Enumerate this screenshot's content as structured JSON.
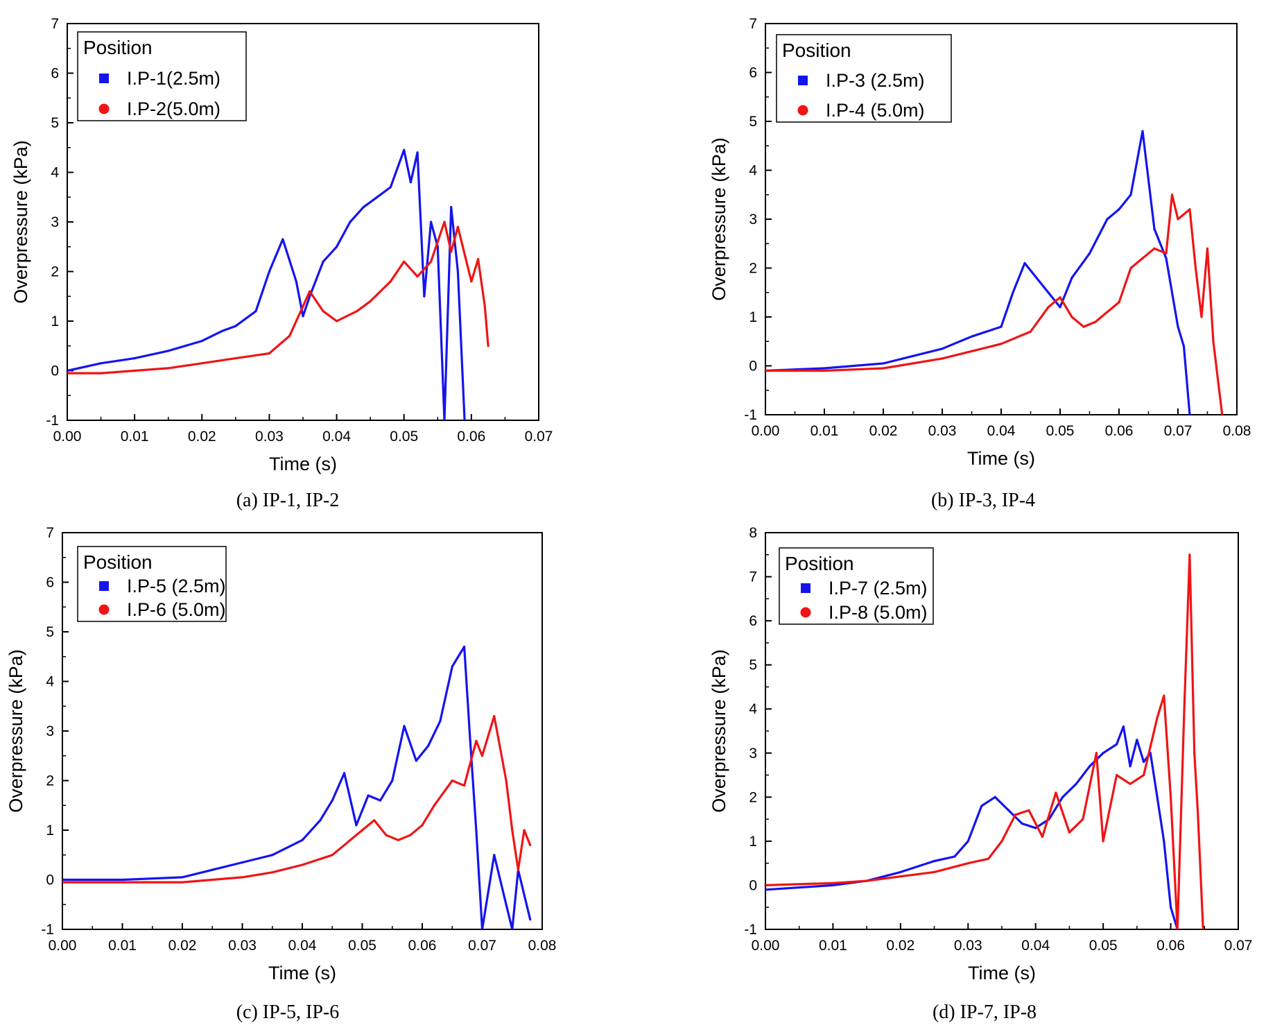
{
  "colors": {
    "series_a": "#1414f0",
    "series_b": "#f01414",
    "axis": "#000000"
  },
  "chart_data": [
    {
      "type": "line",
      "caption": "(a) IP-1, IP-2",
      "xlabel": "Time (s)",
      "ylabel": "Overpressure (kPa)",
      "xlim": [
        0,
        0.07
      ],
      "ylim": [
        -1,
        7
      ],
      "xticks": [
        "0.00",
        "0.01",
        "0.02",
        "0.03",
        "0.04",
        "0.05",
        "0.06",
        "0.07"
      ],
      "yticks": [
        "-1",
        "0",
        "1",
        "2",
        "3",
        "4",
        "5",
        "6",
        "7"
      ],
      "legend": {
        "title": "Position",
        "placement": "top-left"
      },
      "grid": false,
      "series": [
        {
          "name": "I.P-1(2.5m)",
          "marker": "square",
          "x": [
            0,
            0.005,
            0.01,
            0.015,
            0.02,
            0.023,
            0.025,
            0.028,
            0.03,
            0.032,
            0.034,
            0.035,
            0.036,
            0.038,
            0.04,
            0.042,
            0.044,
            0.046,
            0.048,
            0.05,
            0.051,
            0.052,
            0.053,
            0.054,
            0.055,
            0.056,
            0.057,
            0.058,
            0.059
          ],
          "y": [
            0.0,
            0.15,
            0.25,
            0.4,
            0.6,
            0.8,
            0.9,
            1.2,
            2.0,
            2.65,
            1.8,
            1.1,
            1.5,
            2.2,
            2.5,
            3.0,
            3.3,
            3.5,
            3.7,
            4.45,
            3.8,
            4.4,
            1.5,
            3.0,
            2.5,
            -1.0,
            3.3,
            2.0,
            -1.0
          ]
        },
        {
          "name": "I.P-2(5.0m)",
          "marker": "circle",
          "x": [
            0,
            0.005,
            0.01,
            0.015,
            0.02,
            0.025,
            0.03,
            0.033,
            0.035,
            0.036,
            0.038,
            0.04,
            0.043,
            0.045,
            0.048,
            0.05,
            0.052,
            0.054,
            0.056,
            0.057,
            0.058,
            0.06,
            0.061,
            0.062,
            0.0625
          ],
          "y": [
            -0.05,
            -0.05,
            0.0,
            0.05,
            0.15,
            0.25,
            0.35,
            0.7,
            1.3,
            1.6,
            1.2,
            1.0,
            1.2,
            1.4,
            1.8,
            2.2,
            1.9,
            2.2,
            3.0,
            2.4,
            2.9,
            1.8,
            2.25,
            1.3,
            0.5
          ]
        }
      ]
    },
    {
      "type": "line",
      "caption": "(b) IP-3, IP-4",
      "xlabel": "Time (s)",
      "ylabel": "Overpressure (kPa)",
      "xlim": [
        0,
        0.08
      ],
      "ylim": [
        -1,
        7
      ],
      "xticks": [
        "0.00",
        "0.01",
        "0.02",
        "0.03",
        "0.04",
        "0.05",
        "0.06",
        "0.07",
        "0.08"
      ],
      "yticks": [
        "-1",
        "0",
        "1",
        "2",
        "3",
        "4",
        "5",
        "6",
        "7"
      ],
      "legend": {
        "title": "Position",
        "placement": "top-left"
      },
      "grid": false,
      "series": [
        {
          "name": "I.P-3 (2.5m)",
          "marker": "square",
          "x": [
            0,
            0.01,
            0.02,
            0.025,
            0.03,
            0.035,
            0.04,
            0.042,
            0.044,
            0.046,
            0.048,
            0.05,
            0.052,
            0.055,
            0.058,
            0.06,
            0.062,
            0.064,
            0.066,
            0.068,
            0.07,
            0.071,
            0.072
          ],
          "y": [
            -0.1,
            -0.05,
            0.05,
            0.2,
            0.35,
            0.6,
            0.8,
            1.5,
            2.1,
            1.8,
            1.5,
            1.2,
            1.8,
            2.3,
            3.0,
            3.2,
            3.5,
            4.8,
            2.8,
            2.2,
            0.8,
            0.4,
            -1.0
          ]
        },
        {
          "name": "I.P-4 (5.0m)",
          "marker": "circle",
          "x": [
            0,
            0.01,
            0.02,
            0.025,
            0.03,
            0.035,
            0.04,
            0.045,
            0.048,
            0.05,
            0.052,
            0.054,
            0.056,
            0.058,
            0.06,
            0.062,
            0.064,
            0.066,
            0.068,
            0.069,
            0.07,
            0.072,
            0.073,
            0.074,
            0.075,
            0.076,
            0.077,
            0.0775
          ],
          "y": [
            -0.1,
            -0.1,
            -0.05,
            0.05,
            0.15,
            0.3,
            0.45,
            0.7,
            1.2,
            1.4,
            1.0,
            0.8,
            0.9,
            1.1,
            1.3,
            2.0,
            2.2,
            2.4,
            2.3,
            3.5,
            3.0,
            3.2,
            2.0,
            1.0,
            2.4,
            0.5,
            -0.5,
            -1.0
          ]
        }
      ]
    },
    {
      "type": "line",
      "caption": "(c) IP-5, IP-6",
      "xlabel": "Time (s)",
      "ylabel": "Overpressure (kPa)",
      "xlim": [
        0,
        0.08
      ],
      "ylim": [
        -1,
        7
      ],
      "xticks": [
        "0.00",
        "0.01",
        "0.02",
        "0.03",
        "0.04",
        "0.05",
        "0.06",
        "0.07",
        "0.08"
      ],
      "yticks": [
        "-1",
        "0",
        "1",
        "2",
        "3",
        "4",
        "5",
        "6",
        "7"
      ],
      "legend": {
        "title": "Position",
        "placement": "top-left"
      },
      "grid": false,
      "series": [
        {
          "name": "I.P-5 (2.5m)",
          "marker": "square",
          "x": [
            0,
            0.01,
            0.02,
            0.025,
            0.03,
            0.035,
            0.04,
            0.043,
            0.045,
            0.047,
            0.049,
            0.051,
            0.053,
            0.055,
            0.057,
            0.059,
            0.061,
            0.063,
            0.065,
            0.067,
            0.068,
            0.069,
            0.07,
            0.072,
            0.074,
            0.075,
            0.076,
            0.078
          ],
          "y": [
            0.0,
            0.0,
            0.05,
            0.2,
            0.35,
            0.5,
            0.8,
            1.2,
            1.6,
            2.15,
            1.1,
            1.7,
            1.6,
            2.0,
            3.1,
            2.4,
            2.7,
            3.2,
            4.3,
            4.7,
            2.8,
            1.0,
            -1.0,
            0.5,
            -0.5,
            -1.0,
            0.2,
            -0.8
          ]
        },
        {
          "name": "I.P-6 (5.0m)",
          "marker": "circle",
          "x": [
            0,
            0.01,
            0.02,
            0.025,
            0.03,
            0.035,
            0.04,
            0.045,
            0.048,
            0.05,
            0.052,
            0.054,
            0.056,
            0.058,
            0.06,
            0.062,
            0.065,
            0.067,
            0.069,
            0.07,
            0.072,
            0.074,
            0.075,
            0.076,
            0.077,
            0.078
          ],
          "y": [
            -0.05,
            -0.05,
            -0.05,
            0.0,
            0.05,
            0.15,
            0.3,
            0.5,
            0.8,
            1.0,
            1.2,
            0.9,
            0.8,
            0.9,
            1.1,
            1.5,
            2.0,
            1.9,
            2.8,
            2.5,
            3.3,
            2.0,
            1.0,
            0.2,
            1.0,
            0.7
          ]
        }
      ]
    },
    {
      "type": "line",
      "caption": "(d) IP-7, IP-8",
      "xlabel": "Time (s)",
      "ylabel": "Overpressure (kPa)",
      "xlim": [
        0,
        0.07
      ],
      "ylim": [
        -1,
        8
      ],
      "xticks": [
        "0.00",
        "0.01",
        "0.02",
        "0.03",
        "0.04",
        "0.05",
        "0.06",
        "0.07"
      ],
      "yticks": [
        "-1",
        "0",
        "1",
        "2",
        "3",
        "4",
        "5",
        "6",
        "7",
        "8"
      ],
      "legend": {
        "title": "Position",
        "placement": "top-left"
      },
      "grid": false,
      "series": [
        {
          "name": "I.P-7 (2.5m)",
          "marker": "square",
          "x": [
            0,
            0.01,
            0.015,
            0.02,
            0.025,
            0.028,
            0.03,
            0.032,
            0.034,
            0.036,
            0.038,
            0.04,
            0.042,
            0.044,
            0.046,
            0.048,
            0.05,
            0.052,
            0.053,
            0.054,
            0.055,
            0.056,
            0.057,
            0.058,
            0.059,
            0.06,
            0.061
          ],
          "y": [
            -0.1,
            0.0,
            0.1,
            0.3,
            0.55,
            0.65,
            1.0,
            1.8,
            2.0,
            1.7,
            1.4,
            1.3,
            1.5,
            2.0,
            2.3,
            2.7,
            3.0,
            3.2,
            3.6,
            2.7,
            3.3,
            2.8,
            3.0,
            2.0,
            1.0,
            -0.5,
            -1.0
          ]
        },
        {
          "name": "I.P-8 (5.0m)",
          "marker": "circle",
          "x": [
            0,
            0.01,
            0.015,
            0.02,
            0.025,
            0.03,
            0.033,
            0.035,
            0.037,
            0.039,
            0.041,
            0.043,
            0.045,
            0.047,
            0.049,
            0.05,
            0.052,
            0.054,
            0.056,
            0.058,
            0.059,
            0.06,
            0.061,
            0.062,
            0.0628,
            0.0635,
            0.064,
            0.0648
          ],
          "y": [
            0.0,
            0.05,
            0.1,
            0.2,
            0.3,
            0.5,
            0.6,
            1.0,
            1.6,
            1.7,
            1.1,
            2.1,
            1.2,
            1.5,
            3.0,
            1.0,
            2.5,
            2.3,
            2.5,
            3.8,
            4.3,
            2.0,
            -1.0,
            4.0,
            7.5,
            3.0,
            1.7,
            -1.0
          ]
        }
      ]
    }
  ]
}
